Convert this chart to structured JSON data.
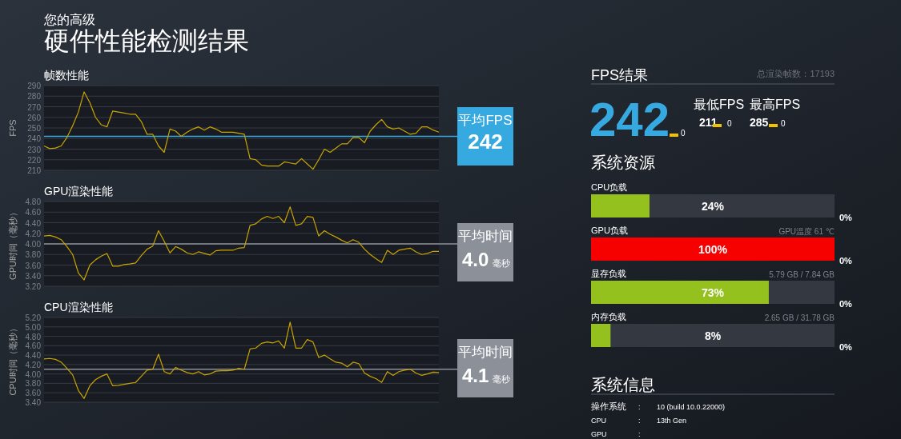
{
  "chart_data": [
    {
      "type": "other",
      "title": "硬件性能检测结果",
      "subtitle": "您的高级"
    },
    {
      "type": "line",
      "title": "帧数性能",
      "ylabel": "FPS",
      "tick_labels": "y",
      "grid": "y",
      "categories": [
        null,
        null,
        null,
        null,
        null,
        null,
        null,
        null,
        null,
        null,
        null,
        null,
        null,
        null,
        null,
        null,
        null,
        null,
        null,
        null,
        null,
        null,
        null,
        null,
        null,
        null,
        null,
        null,
        null,
        null,
        null,
        null,
        null,
        null,
        null,
        null,
        null,
        null,
        null,
        null,
        null,
        null,
        null,
        null,
        null,
        null,
        null,
        null,
        null,
        null,
        null,
        null,
        null,
        null,
        null,
        null,
        null,
        null,
        null,
        null,
        null,
        null,
        null,
        null,
        null,
        null,
        null,
        null,
        null,
        null
      ],
      "series": [
        {
          "color": "#c9a400",
          "values": [
            233,
            230.5,
            231,
            233,
            241,
            252,
            265,
            284,
            274,
            260,
            253,
            251,
            266,
            265,
            264,
            263,
            263,
            256,
            244,
            244,
            233,
            227,
            249,
            247,
            242,
            246,
            249,
            251,
            248,
            251,
            249,
            246,
            246,
            246,
            245,
            244,
            221,
            220,
            215,
            214,
            214,
            214,
            218,
            217,
            216,
            221,
            216,
            211,
            220,
            230,
            227,
            231,
            235,
            235,
            241,
            241,
            236,
            247,
            253,
            258,
            251,
            249,
            250,
            247,
            244,
            245,
            251,
            251,
            248,
            246
          ]
        }
      ],
      "ylim": [
        210,
        290
      ],
      "yticks": [
        210,
        220,
        230,
        240,
        250,
        260,
        270,
        280,
        290
      ],
      "ref_lines": [
        {
          "axis": "y",
          "value": 242,
          "label": "平均FPS",
          "color": "#36a9e1"
        }
      ],
      "annotations": [
        "242"
      ]
    },
    {
      "type": "line",
      "title": "GPU渲染性能",
      "ylabel": "GPU时间（毫秒）",
      "tick_labels": "y",
      "grid": "y",
      "categories": [
        null,
        null,
        null,
        null,
        null,
        null,
        null,
        null,
        null,
        null,
        null,
        null,
        null,
        null,
        null,
        null,
        null,
        null,
        null,
        null,
        null,
        null,
        null,
        null,
        null,
        null,
        null,
        null,
        null,
        null,
        null,
        null,
        null,
        null,
        null,
        null,
        null,
        null,
        null,
        null,
        null,
        null,
        null,
        null,
        null,
        null,
        null,
        null,
        null,
        null,
        null,
        null,
        null,
        null,
        null,
        null,
        null,
        null,
        null,
        null,
        null,
        null,
        null,
        null,
        null,
        null,
        null,
        null,
        null,
        null
      ],
      "series": [
        {
          "color": "#c9a400",
          "values": [
            4.15,
            4.16,
            4.13,
            4.08,
            3.95,
            3.8,
            3.45,
            3.32,
            3.6,
            3.7,
            3.77,
            3.82,
            3.58,
            3.58,
            3.61,
            3.62,
            3.64,
            3.78,
            3.9,
            3.96,
            4.25,
            4.05,
            3.83,
            3.95,
            3.9,
            3.83,
            3.8,
            3.85,
            3.82,
            3.79,
            3.87,
            3.88,
            3.88,
            3.88,
            3.92,
            3.93,
            4.35,
            4.38,
            4.47,
            4.52,
            4.48,
            4.52,
            4.4,
            4.7,
            4.35,
            4.38,
            4.52,
            4.5,
            4.15,
            4.25,
            4.18,
            4.13,
            4.07,
            4.02,
            4.08,
            4.03,
            3.9,
            3.8,
            3.72,
            3.65,
            3.88,
            3.8,
            3.88,
            3.9,
            3.92,
            3.85,
            3.8,
            3.82,
            3.86,
            3.86
          ]
        }
      ],
      "ylim": [
        3.2,
        4.8
      ],
      "yticks": [
        {
          "value": 3.2,
          "label": "3.20"
        },
        {
          "value": 3.4,
          "label": "3.40"
        },
        {
          "value": 3.6,
          "label": "3.60"
        },
        {
          "value": 3.8,
          "label": "3.80"
        },
        {
          "value": 4.0,
          "label": "4.00"
        },
        {
          "value": 4.2,
          "label": "4.20"
        },
        {
          "value": 4.4,
          "label": "4.40"
        },
        {
          "value": 4.6,
          "label": "4.60"
        },
        {
          "value": 4.8,
          "label": "4.80"
        }
      ],
      "ref_lines": [
        {
          "axis": "y",
          "value": 4.0,
          "label": "平均时间",
          "color": "#8c9099"
        }
      ],
      "annotations": [
        "4.0",
        "毫秒"
      ]
    },
    {
      "type": "line",
      "title": "CPU渲染性能",
      "ylabel": "CPU时间（毫秒）",
      "tick_labels": "y",
      "grid": "y",
      "categories": [
        null,
        null,
        null,
        null,
        null,
        null,
        null,
        null,
        null,
        null,
        null,
        null,
        null,
        null,
        null,
        null,
        null,
        null,
        null,
        null,
        null,
        null,
        null,
        null,
        null,
        null,
        null,
        null,
        null,
        null,
        null,
        null,
        null,
        null,
        null,
        null,
        null,
        null,
        null,
        null,
        null,
        null,
        null,
        null,
        null,
        null,
        null,
        null,
        null,
        null,
        null,
        null,
        null,
        null,
        null,
        null,
        null,
        null,
        null,
        null,
        null,
        null,
        null,
        null,
        null,
        null,
        null,
        null,
        null,
        null
      ],
      "series": [
        {
          "color": "#c9a400",
          "values": [
            4.32,
            4.33,
            4.31,
            4.25,
            4.12,
            3.98,
            3.65,
            3.48,
            3.75,
            3.88,
            3.95,
            4.0,
            3.75,
            3.76,
            3.78,
            3.8,
            3.82,
            3.95,
            4.08,
            4.1,
            4.42,
            4.05,
            4.0,
            4.14,
            4.08,
            4.03,
            4.0,
            4.05,
            3.98,
            4.0,
            4.06,
            4.07,
            4.07,
            4.08,
            4.12,
            4.1,
            4.53,
            4.55,
            4.65,
            4.68,
            4.66,
            4.7,
            4.55,
            5.1,
            4.55,
            4.55,
            4.73,
            4.68,
            4.35,
            4.4,
            4.32,
            4.25,
            4.23,
            4.15,
            4.25,
            4.22,
            4.02,
            3.95,
            3.9,
            3.82,
            4.05,
            3.97,
            4.05,
            4.08,
            4.1,
            4.02,
            3.97,
            4.0,
            4.04,
            4.03
          ]
        }
      ],
      "ylim": [
        3.4,
        5.2
      ],
      "yticks": [
        {
          "value": 3.4,
          "label": "3.40"
        },
        {
          "value": 3.6,
          "label": "3.60"
        },
        {
          "value": 3.8,
          "label": "3.80"
        },
        {
          "value": 4.0,
          "label": "4.00"
        },
        {
          "value": 4.2,
          "label": "4.20"
        },
        {
          "value": 4.4,
          "label": "4.40"
        },
        {
          "value": 4.6,
          "label": "4.60"
        },
        {
          "value": 4.8,
          "label": "4.80"
        },
        {
          "value": 5.0,
          "label": "5.00"
        },
        {
          "value": 5.2,
          "label": "5.20"
        }
      ],
      "ref_lines": [
        {
          "axis": "y",
          "value": 4.1,
          "label": "平均时间",
          "color": "#8c9099"
        }
      ],
      "annotations": [
        "4.1",
        "毫秒"
      ]
    },
    {
      "type": "other",
      "title": "FPS结果",
      "annotations": [
        "总渲染帧数：17193",
        "242",
        "0",
        "最低FPS",
        "最高FPS",
        "211",
        "0",
        "285",
        "0"
      ]
    },
    {
      "type": "bar",
      "orientation": "horizontal",
      "title": "系统资源",
      "tick_labels": false,
      "categories": [
        "CPU负载",
        "GPU负载",
        "显存负载",
        "内存负载"
      ],
      "values": [
        24,
        100,
        73,
        8
      ],
      "colors": [
        "#95c11f",
        "#f70000",
        "#95c11f",
        "#95c11f"
      ],
      "xlim": [
        0,
        100
      ],
      "value_labels": [
        "24%",
        "100%",
        "73%",
        "8%"
      ],
      "annotations": [
        "0%",
        "0%",
        "0%",
        "0%",
        "GPU温度 61 ℃",
        "5.79 GB / 7.84 GB",
        "2.65 GB / 31.78 GB"
      ]
    },
    {
      "type": "other",
      "title": "系统信息",
      "annotations": [
        "操作系统",
        ":",
        "10 (build 10.0.22000)",
        "CPU",
        ":",
        "13th Gen",
        "GPU",
        ":"
      ]
    }
  ]
}
